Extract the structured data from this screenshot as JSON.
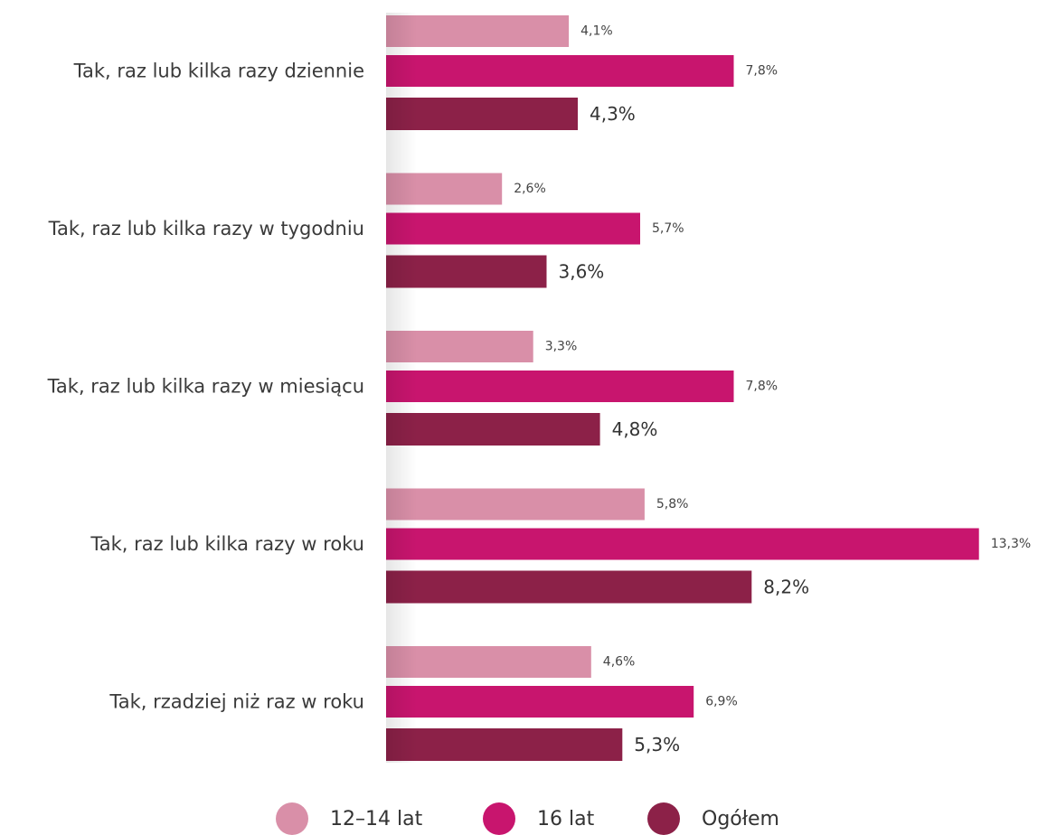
{
  "chart_data": {
    "type": "bar",
    "orientation": "horizontal",
    "categories": [
      "Tak, raz lub kilka razy dziennie",
      "Tak, raz lub kilka razy w tygodniu",
      "Tak, raz lub kilka razy w miesiącu",
      "Tak, raz lub kilka razy w roku",
      "Tak, rzadziej niż raz w roku"
    ],
    "series": [
      {
        "name": "12–14 lat",
        "color": "#d98fa8",
        "values": [
          4.1,
          2.6,
          3.3,
          5.8,
          4.6
        ],
        "labels": [
          "4,1%",
          "2,6%",
          "3,3%",
          "5,8%",
          "4,6%"
        ]
      },
      {
        "name": "16 lat",
        "color": "#c8156e",
        "values": [
          7.8,
          5.7,
          7.8,
          13.3,
          6.9
        ],
        "labels": [
          "7,8%",
          "5,7%",
          "7,8%",
          "13,3%",
          "6,9%"
        ]
      },
      {
        "name": "Ogółem",
        "color": "#8c2148",
        "values": [
          4.3,
          3.6,
          4.8,
          8.2,
          5.3
        ],
        "labels": [
          "4,3%",
          "3,6%",
          "4,8%",
          "8,2%",
          "5,3%"
        ]
      }
    ],
    "legend_position": "bottom",
    "grid": false
  }
}
